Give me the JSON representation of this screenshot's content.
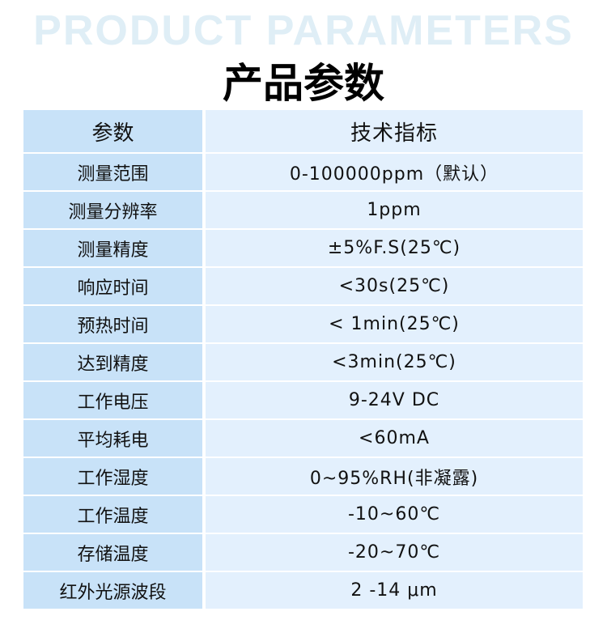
{
  "watermark": "PRODUCT PARAMETERS",
  "title": "产品参数",
  "table": {
    "headers": [
      "参数",
      "技术指标"
    ],
    "rows": [
      [
        "测量范围",
        "0-100000ppm（默认）"
      ],
      [
        "测量分辨率",
        "1ppm"
      ],
      [
        "测量精度",
        "±5%F.S(25℃)"
      ],
      [
        "响应时间",
        "<30s(25℃)"
      ],
      [
        "预热时间",
        "< 1min(25℃)"
      ],
      [
        "达到精度",
        "<3min(25℃)"
      ],
      [
        "工作电压",
        "9-24V DC"
      ],
      [
        "平均耗电",
        "<60mA"
      ],
      [
        "工作湿度",
        "0~95%RH(非凝露)"
      ],
      [
        "工作温度",
        "-10~60℃"
      ],
      [
        "存储温度",
        "-20~70℃"
      ],
      [
        "红外光源波段",
        "2 -14 μm"
      ]
    ]
  }
}
